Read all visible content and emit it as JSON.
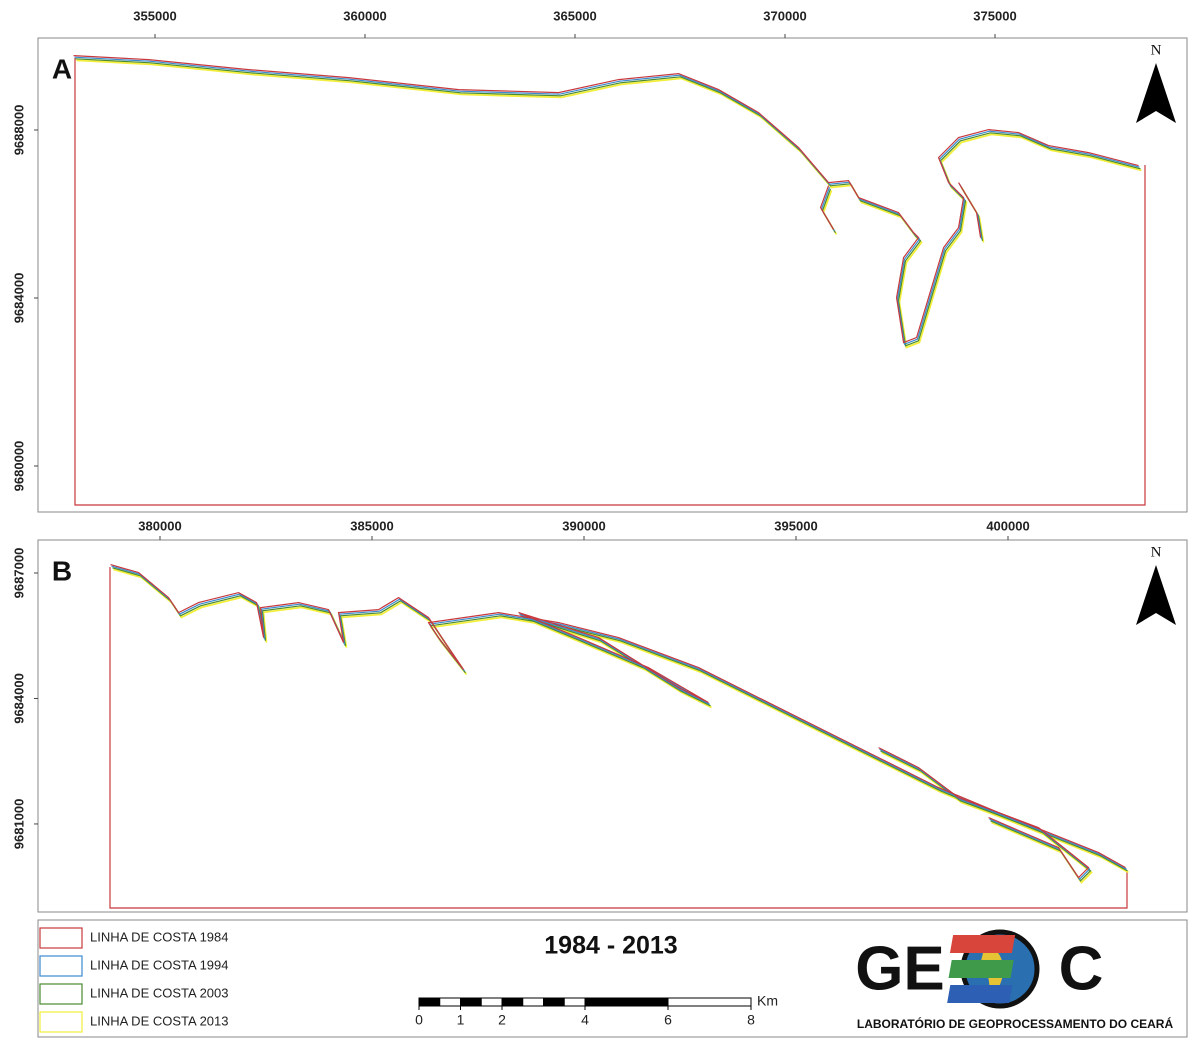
{
  "panels": [
    {
      "label": "A",
      "north": "N",
      "xlim": [
        352262,
        379595
      ],
      "ylim": [
        9678905,
        9690190
      ],
      "xticks": [
        355000,
        360000,
        365000,
        370000,
        375000
      ],
      "yticks": [
        9680000,
        9684000,
        9688000
      ]
    },
    {
      "label": "B",
      "north": "N",
      "xlim": [
        377170,
        404245
      ],
      "ylim": [
        9678895,
        9687789
      ],
      "xticks": [
        380000,
        385000,
        390000,
        395000,
        400000
      ],
      "yticks": [
        9681000,
        9684000,
        9687000
      ]
    }
  ],
  "legend": [
    {
      "name": "LINHA DE COSTA 1984",
      "color": "#c8383c"
    },
    {
      "name": "LINHA DE COSTA 1994",
      "color": "#3a8ad0"
    },
    {
      "name": "LINHA DE COSTA 2003",
      "color": "#4a8a30"
    },
    {
      "name": "LINHA DE COSTA 2013",
      "color": "#f2ee3a"
    }
  ],
  "title": "1984 - 2013",
  "scalebar": {
    "labels": [
      0,
      1,
      2,
      4,
      6,
      8
    ],
    "unit": "Km"
  },
  "logo": {
    "left": "GE",
    "right": "C",
    "caption": "LABORATÓRIO DE GEOPROCESSAMENTO DO CEARÁ"
  }
}
